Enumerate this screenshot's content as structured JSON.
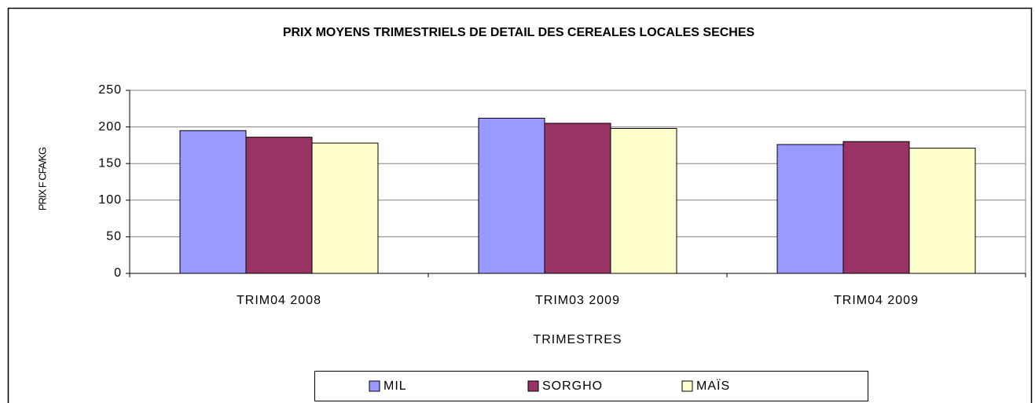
{
  "chart_data": {
    "type": "bar",
    "title": "PRIX MOYENS TRIMESTRIELS DE DETAIL DES CEREALES LOCALES SECHES",
    "x_label": "TRIMESTRES",
    "y_label": "PRIX F CFA/KG",
    "categories": [
      "TRIM04  2008",
      "TRIM03 2009",
      "TRIM04 2009"
    ],
    "series": [
      {
        "name": "MIL",
        "color": "#9999ff",
        "values": [
          195,
          212,
          176
        ]
      },
      {
        "name": "SORGHO",
        "color": "#993366",
        "values": [
          186,
          205,
          180
        ]
      },
      {
        "name": "MAÏS",
        "color": "#ffffcc",
        "values": [
          178,
          198,
          171
        ]
      }
    ],
    "ylim": [
      0,
      250
    ],
    "yticks": [
      0,
      50,
      100,
      150,
      200,
      250
    ],
    "grid": true
  }
}
